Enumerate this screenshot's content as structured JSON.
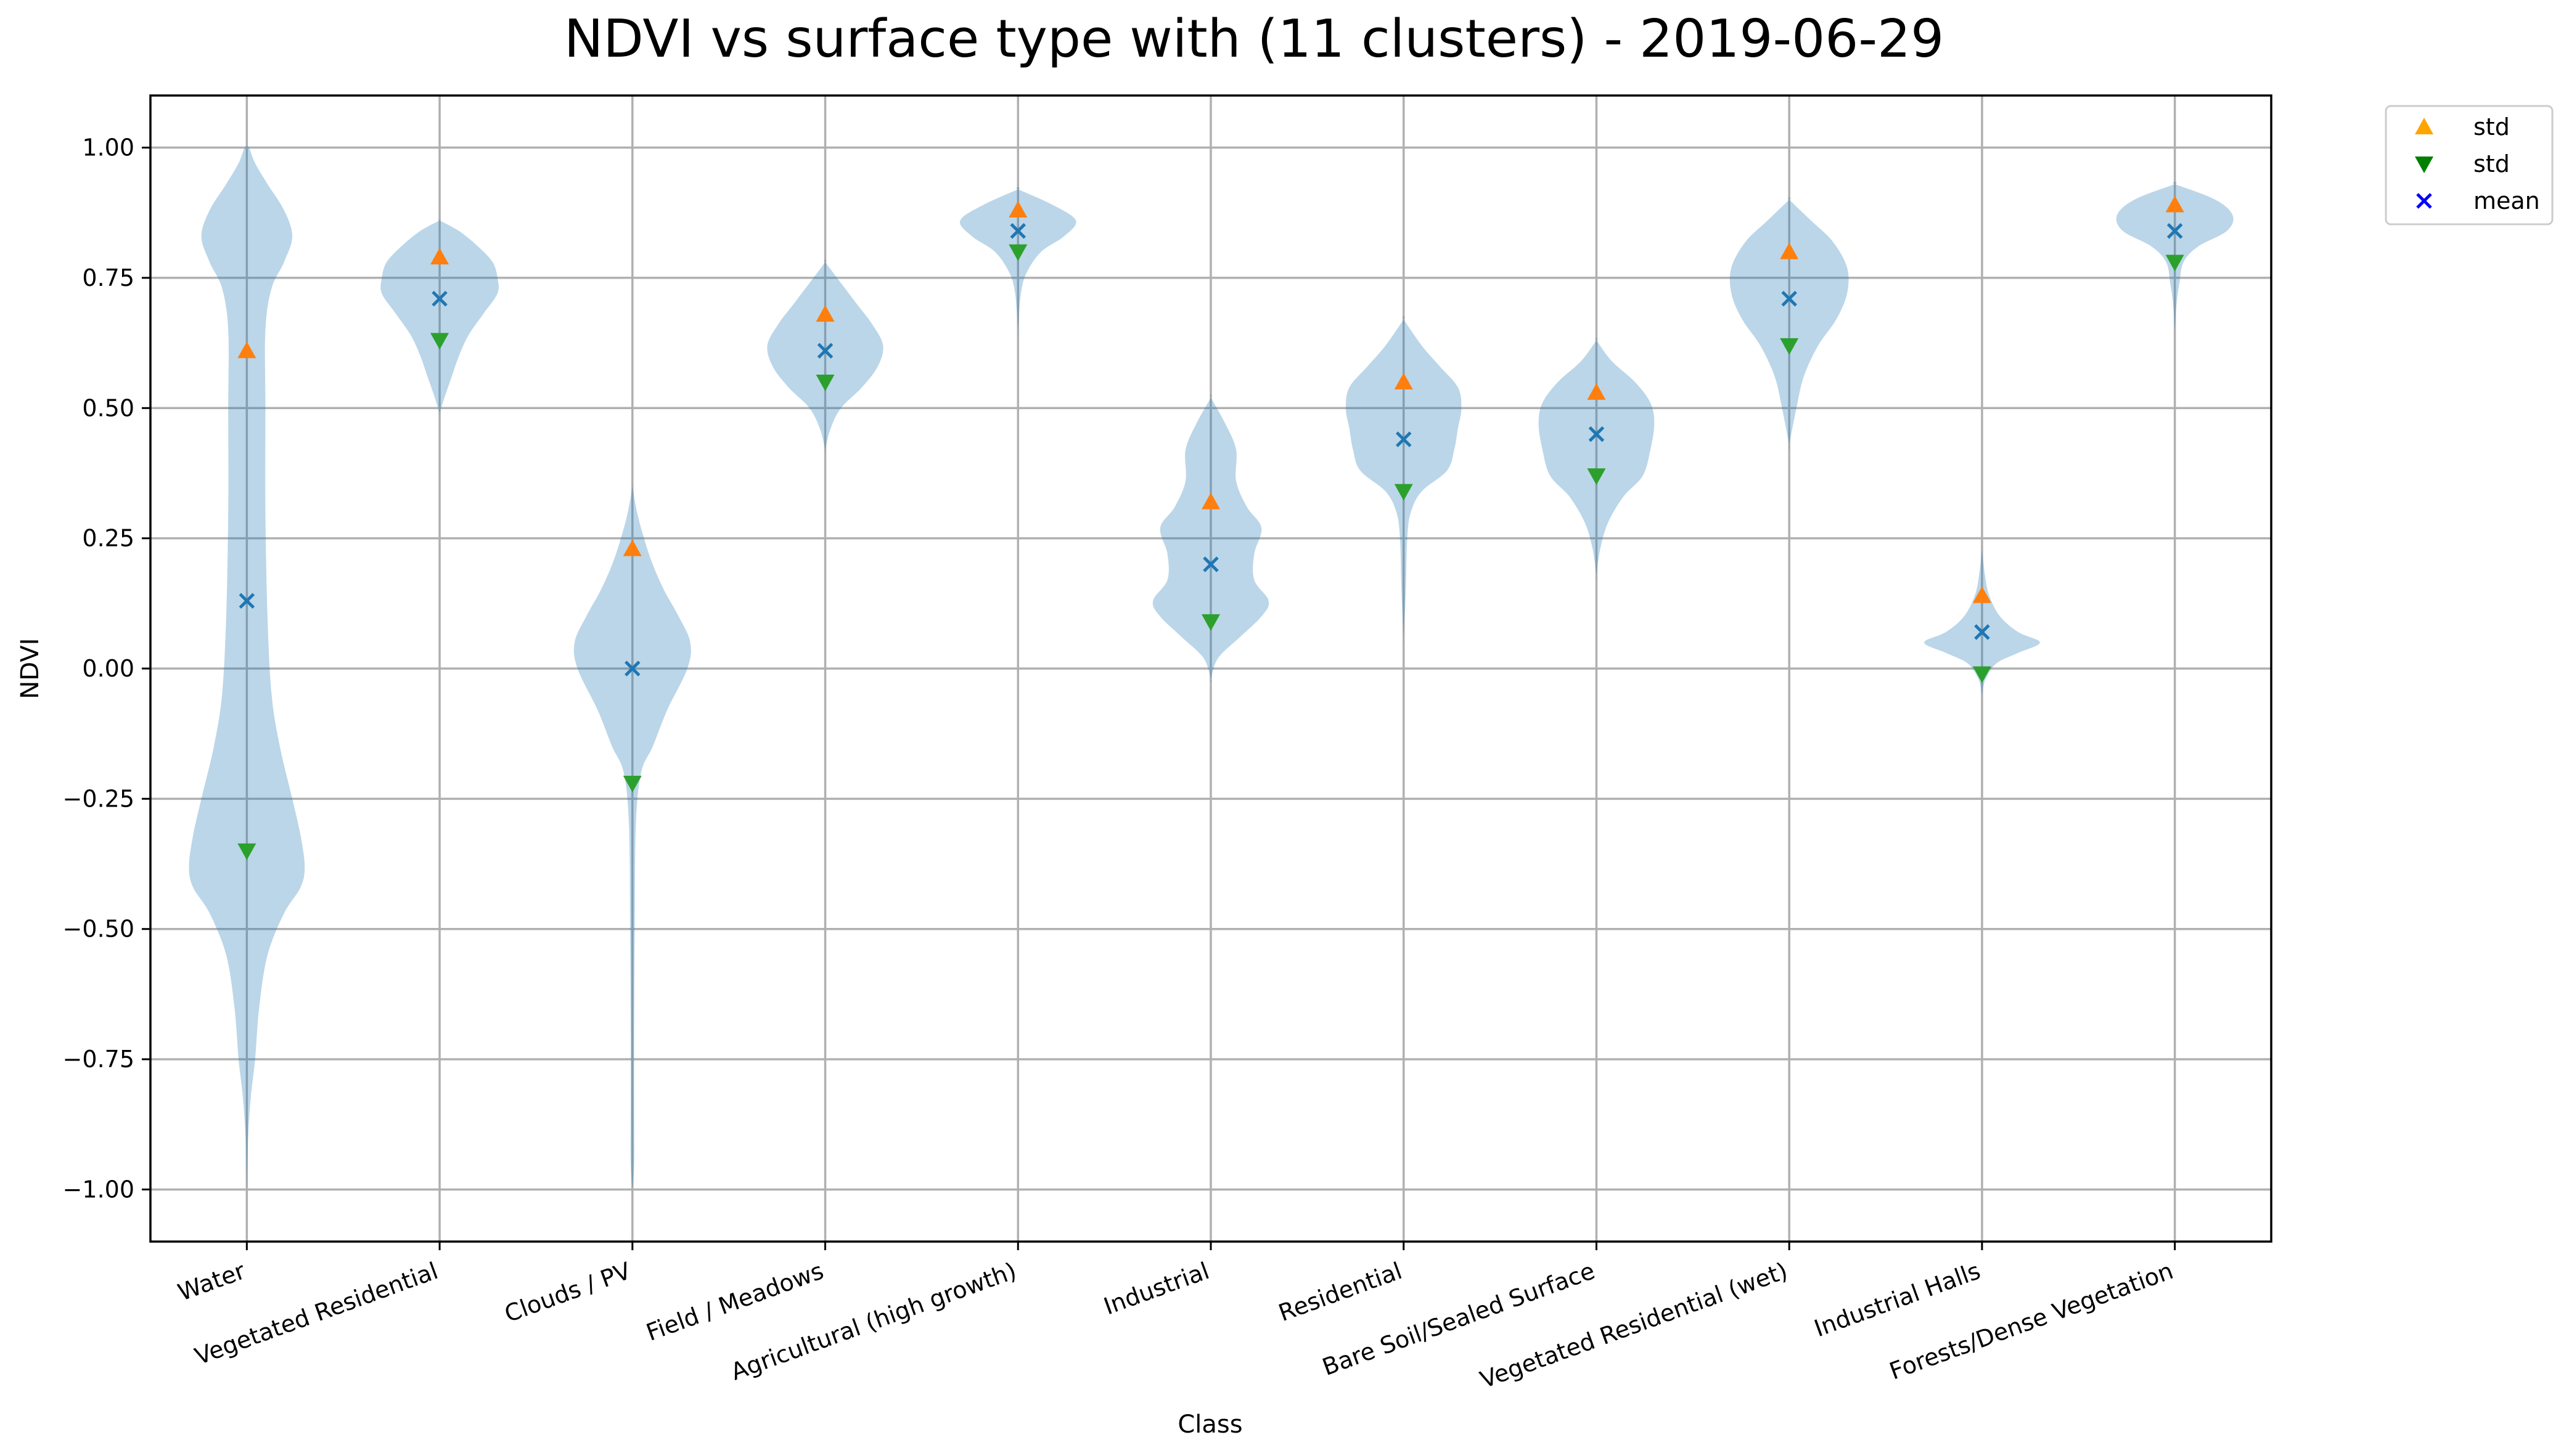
{
  "chart_data": {
    "type": "violin",
    "title": "NDVI vs surface type with (11 clusters) - 2019-06-29",
    "xlabel": "Class",
    "ylabel": "NDVI",
    "ylim": [
      -1.1,
      1.1
    ],
    "yticks": [
      "1.00",
      "0.75",
      "0.50",
      "0.25",
      "0.00",
      "−0.25",
      "−0.50",
      "−0.75",
      "−1.00"
    ],
    "ytick_values": [
      1.0,
      0.75,
      0.5,
      0.25,
      0.0,
      -0.25,
      -0.5,
      -0.75,
      -1.0
    ],
    "grid": true,
    "legend_position": "outside-top-right",
    "legend": [
      {
        "label": "std",
        "marker": "triangle-up",
        "color": "#ffa500"
      },
      {
        "label": "std",
        "marker": "triangle-down",
        "color": "#008000"
      },
      {
        "label": "mean",
        "marker": "x",
        "color": "#0000ff"
      }
    ],
    "colors": {
      "violin": "#1f77b4",
      "std_upper": "#ff7f0e",
      "std_lower": "#2ca02c",
      "mean": "#1f77b4"
    },
    "categories": [
      "Water",
      "Vegetated Residential",
      "Clouds / PV",
      "Field / Meadows",
      "Agricultural (high growth)",
      "Industrial",
      "Residential",
      "Bare Soil/Sealed Surface",
      "Vegetated Residential (wet)",
      "Industrial Halls",
      "Forests/Dense Vegetation"
    ],
    "mean": [
      0.13,
      0.71,
      0.0,
      0.61,
      0.84,
      0.2,
      0.44,
      0.45,
      0.71,
      0.07,
      0.84
    ],
    "std_upper": [
      0.61,
      0.79,
      0.23,
      0.68,
      0.88,
      0.32,
      0.55,
      0.53,
      0.8,
      0.14,
      0.89
    ],
    "std_lower": [
      -0.35,
      0.63,
      -0.22,
      0.55,
      0.8,
      0.09,
      0.34,
      0.37,
      0.62,
      -0.01,
      0.78
    ],
    "distributions": [
      {
        "min": -1.0,
        "max": 1.0,
        "profile": [
          [
            -1.0,
            0
          ],
          [
            -0.9,
            0.003
          ],
          [
            -0.82,
            0.01
          ],
          [
            -0.75,
            0.02
          ],
          [
            -0.65,
            0.03
          ],
          [
            -0.55,
            0.05
          ],
          [
            -0.47,
            0.09
          ],
          [
            -0.42,
            0.13
          ],
          [
            -0.38,
            0.14
          ],
          [
            -0.32,
            0.13
          ],
          [
            -0.25,
            0.11
          ],
          [
            -0.15,
            0.08
          ],
          [
            -0.05,
            0.06
          ],
          [
            0.1,
            0.05
          ],
          [
            0.3,
            0.045
          ],
          [
            0.5,
            0.045
          ],
          [
            0.65,
            0.045
          ],
          [
            0.73,
            0.06
          ],
          [
            0.78,
            0.09
          ],
          [
            0.83,
            0.11
          ],
          [
            0.88,
            0.09
          ],
          [
            0.93,
            0.05
          ],
          [
            0.97,
            0.02
          ],
          [
            1.0,
            0.005
          ]
        ]
      },
      {
        "min": 0.49,
        "max": 0.86,
        "profile": [
          [
            0.49,
            0
          ],
          [
            0.52,
            0.01
          ],
          [
            0.56,
            0.025
          ],
          [
            0.6,
            0.04
          ],
          [
            0.64,
            0.06
          ],
          [
            0.68,
            0.09
          ],
          [
            0.72,
            0.12
          ],
          [
            0.75,
            0.12
          ],
          [
            0.78,
            0.11
          ],
          [
            0.81,
            0.08
          ],
          [
            0.84,
            0.04
          ],
          [
            0.86,
            0
          ]
        ]
      },
      {
        "min": -1.0,
        "max": 0.35,
        "profile": [
          [
            -1.0,
            0
          ],
          [
            -0.95,
            0.003
          ],
          [
            -0.85,
            0.003
          ],
          [
            -0.7,
            0.003
          ],
          [
            -0.5,
            0.004
          ],
          [
            -0.3,
            0.006
          ],
          [
            -0.2,
            0.015
          ],
          [
            -0.15,
            0.035
          ],
          [
            -0.08,
            0.06
          ],
          [
            0.0,
            0.095
          ],
          [
            0.05,
            0.1
          ],
          [
            0.1,
            0.08
          ],
          [
            0.15,
            0.055
          ],
          [
            0.2,
            0.035
          ],
          [
            0.25,
            0.02
          ],
          [
            0.3,
            0.008
          ],
          [
            0.35,
            0
          ]
        ]
      },
      {
        "min": 0.42,
        "max": 0.78,
        "profile": [
          [
            0.42,
            0
          ],
          [
            0.46,
            0.01
          ],
          [
            0.5,
            0.03
          ],
          [
            0.54,
            0.07
          ],
          [
            0.58,
            0.1
          ],
          [
            0.62,
            0.11
          ],
          [
            0.66,
            0.09
          ],
          [
            0.7,
            0.06
          ],
          [
            0.74,
            0.03
          ],
          [
            0.78,
            0
          ]
        ]
      },
      {
        "min": 0.65,
        "max": 0.92,
        "profile": [
          [
            0.65,
            0
          ],
          [
            0.72,
            0.005
          ],
          [
            0.76,
            0.015
          ],
          [
            0.8,
            0.04
          ],
          [
            0.83,
            0.08
          ],
          [
            0.86,
            0.1
          ],
          [
            0.89,
            0.06
          ],
          [
            0.92,
            0
          ]
        ]
      },
      {
        "min": -0.02,
        "max": 0.52,
        "profile": [
          [
            -0.02,
            0
          ],
          [
            0.02,
            0.01
          ],
          [
            0.06,
            0.04
          ],
          [
            0.1,
            0.07
          ],
          [
            0.13,
            0.08
          ],
          [
            0.17,
            0.06
          ],
          [
            0.22,
            0.06
          ],
          [
            0.27,
            0.07
          ],
          [
            0.31,
            0.05
          ],
          [
            0.36,
            0.035
          ],
          [
            0.42,
            0.035
          ],
          [
            0.47,
            0.02
          ],
          [
            0.52,
            0
          ]
        ]
      },
      {
        "min": 0.06,
        "max": 0.67,
        "profile": [
          [
            0.06,
            0
          ],
          [
            0.15,
            0.003
          ],
          [
            0.25,
            0.005
          ],
          [
            0.3,
            0.01
          ],
          [
            0.34,
            0.025
          ],
          [
            0.38,
            0.06
          ],
          [
            0.42,
            0.07
          ],
          [
            0.46,
            0.075
          ],
          [
            0.5,
            0.08
          ],
          [
            0.54,
            0.075
          ],
          [
            0.58,
            0.05
          ],
          [
            0.62,
            0.025
          ],
          [
            0.67,
            0
          ]
        ]
      },
      {
        "min": 0.18,
        "max": 0.63,
        "profile": [
          [
            0.18,
            0
          ],
          [
            0.23,
            0.005
          ],
          [
            0.28,
            0.015
          ],
          [
            0.33,
            0.035
          ],
          [
            0.37,
            0.06
          ],
          [
            0.42,
            0.07
          ],
          [
            0.47,
            0.075
          ],
          [
            0.51,
            0.07
          ],
          [
            0.55,
            0.05
          ],
          [
            0.59,
            0.02
          ],
          [
            0.63,
            0
          ]
        ]
      },
      {
        "min": 0.43,
        "max": 0.9,
        "profile": [
          [
            0.43,
            0
          ],
          [
            0.5,
            0.01
          ],
          [
            0.56,
            0.02
          ],
          [
            0.62,
            0.04
          ],
          [
            0.67,
            0.065
          ],
          [
            0.72,
            0.08
          ],
          [
            0.77,
            0.08
          ],
          [
            0.82,
            0.06
          ],
          [
            0.86,
            0.03
          ],
          [
            0.9,
            0
          ]
        ]
      },
      {
        "min": -0.05,
        "max": 0.23,
        "profile": [
          [
            -0.05,
            0
          ],
          [
            -0.02,
            0.005
          ],
          [
            0.01,
            0.02
          ],
          [
            0.03,
            0.05
          ],
          [
            0.05,
            0.08
          ],
          [
            0.07,
            0.05
          ],
          [
            0.1,
            0.025
          ],
          [
            0.14,
            0.01
          ],
          [
            0.18,
            0.004
          ],
          [
            0.23,
            0
          ]
        ]
      },
      {
        "min": 0.65,
        "max": 0.93,
        "profile": [
          [
            0.65,
            0
          ],
          [
            0.7,
            0.003
          ],
          [
            0.74,
            0.008
          ],
          [
            0.78,
            0.015
          ],
          [
            0.81,
            0.04
          ],
          [
            0.84,
            0.09
          ],
          [
            0.87,
            0.1
          ],
          [
            0.9,
            0.07
          ],
          [
            0.93,
            0
          ]
        ]
      }
    ]
  }
}
